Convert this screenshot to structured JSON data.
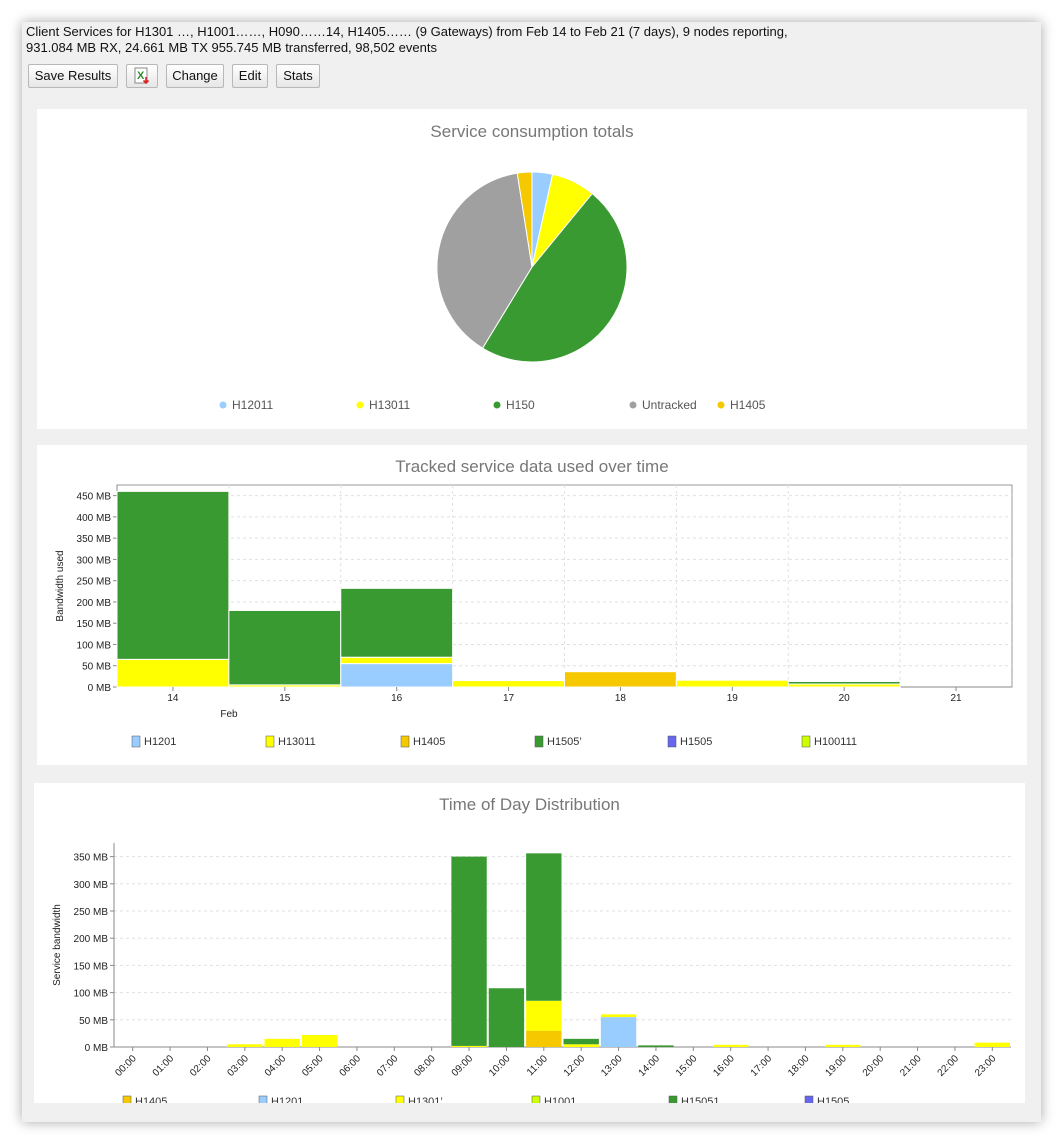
{
  "header": {
    "summary_line1": "Client Services for H1301          …, H1001……, H090……14, H1405…… (9 Gateways) from Feb 14 to Feb 21 (7 days), 9 nodes reporting,",
    "summary_line2": "931.084 MB RX, 24.661 MB TX 955.745 MB transferred, 98,502 events"
  },
  "toolbar": {
    "save_label": "Save Results",
    "excel_icon": "excel-export-icon",
    "change_label": "Change",
    "edit_label": "Edit",
    "stats_label": "Stats"
  },
  "chart_data": [
    {
      "type": "pie",
      "title": "Service consumption totals",
      "slices": [
        {
          "name": "H12011",
          "value": 3.5,
          "color": "#99ccff"
        },
        {
          "name": "H13011",
          "value": 7.5,
          "color": "#ffff00"
        },
        {
          "name": "H150",
          "value": 48,
          "color": "#3a9a32"
        },
        {
          "name": "Untracked",
          "value": 39,
          "color": "#a0a0a0"
        },
        {
          "name": "H1405",
          "value": 2.5,
          "color": "#f5c800"
        }
      ],
      "legend": [
        "H12011",
        "H13011",
        "H150",
        "Untracked",
        "H1405"
      ]
    },
    {
      "type": "bar",
      "stacked": true,
      "title": "Tracked service data used over time",
      "ylabel": "Bandwidth used",
      "xlabel_sub": "Feb",
      "categories": [
        "14",
        "15",
        "16",
        "17",
        "18",
        "19",
        "20",
        "21"
      ],
      "ylim": [
        0,
        475
      ],
      "yticks": [
        0,
        50,
        100,
        150,
        200,
        250,
        300,
        350,
        400,
        450
      ],
      "ytick_labels": [
        "0 MB",
        "50 MB",
        "100 MB",
        "150 MB",
        "200 MB",
        "250 MB",
        "300 MB",
        "350 MB",
        "400 MB",
        "450 MB"
      ],
      "series": [
        {
          "name": "H1201",
          "color": "#99ccff",
          "values": [
            0,
            0,
            55,
            0,
            0,
            0,
            0,
            0
          ]
        },
        {
          "name": "H13011",
          "color": "#ffff00",
          "values": [
            65,
            5,
            15,
            15,
            0,
            16,
            7,
            0
          ]
        },
        {
          "name": "H1405",
          "color": "#f5c800",
          "values": [
            0,
            0,
            0,
            0,
            36,
            0,
            0,
            0
          ]
        },
        {
          "name": "H1505’",
          "color": "#3a9a32",
          "values": [
            395,
            175,
            162,
            0,
            0,
            0,
            6,
            0
          ]
        },
        {
          "name": "H1505",
          "color": "#6666ee",
          "values": [
            0,
            0,
            0,
            0,
            0,
            0,
            0,
            0
          ]
        },
        {
          "name": "H100111",
          "color": "#ccff00",
          "values": [
            0,
            0,
            0,
            0,
            0,
            0,
            0,
            0
          ]
        }
      ],
      "legend": [
        "H1201",
        "H13011",
        "H1405",
        "H1505’",
        "H1505",
        "H100111"
      ]
    },
    {
      "type": "bar",
      "stacked": true,
      "title": "Time of Day Distribution",
      "ylabel": "Service bandwidth",
      "categories": [
        "00:00",
        "01:00",
        "02:00",
        "03:00",
        "04:00",
        "05:00",
        "06:00",
        "07:00",
        "08:00",
        "09:00",
        "10:00",
        "11:00",
        "12:00",
        "13:00",
        "14:00",
        "15:00",
        "16:00",
        "17:00",
        "18:00",
        "19:00",
        "20:00",
        "21:00",
        "22:00",
        "23:00"
      ],
      "ylim": [
        0,
        375
      ],
      "yticks": [
        0,
        50,
        100,
        150,
        200,
        250,
        300,
        350
      ],
      "ytick_labels": [
        "0 MB",
        "50 MB",
        "100 MB",
        "150 MB",
        "200 MB",
        "250 MB",
        "300 MB",
        "350 MB"
      ],
      "series": [
        {
          "name": "H1405",
          "color": "#f5c800",
          "values": [
            0,
            0,
            0,
            0,
            0,
            0,
            0,
            0,
            0,
            0,
            0,
            30,
            0,
            0,
            0,
            0,
            0,
            0,
            0,
            0,
            0,
            0,
            0,
            0
          ]
        },
        {
          "name": "H1201",
          "color": "#99ccff",
          "values": [
            0,
            0,
            0,
            0,
            0,
            0,
            0,
            0,
            0,
            0,
            0,
            0,
            0,
            55,
            0,
            0,
            0,
            0,
            0,
            0,
            0,
            0,
            0,
            0
          ]
        },
        {
          "name": "H1301’",
          "color": "#ffff00",
          "values": [
            0,
            0,
            0,
            5,
            15,
            22,
            0,
            0,
            0,
            2,
            0,
            55,
            5,
            5,
            0,
            0,
            4,
            0,
            0,
            4,
            0,
            0,
            0,
            8
          ]
        },
        {
          "name": "H1001",
          "color": "#ccff00",
          "values": [
            0,
            0,
            0,
            0,
            0,
            0,
            0,
            0,
            0,
            0,
            0,
            0,
            0,
            0,
            0,
            0,
            0,
            0,
            0,
            0,
            0,
            0,
            0,
            0
          ]
        },
        {
          "name": "H15051",
          "color": "#3a9a32",
          "values": [
            0,
            0,
            0,
            0,
            0,
            0,
            0,
            0,
            0,
            348,
            108,
            271,
            10,
            0,
            3,
            0,
            0,
            0,
            0,
            0,
            0,
            0,
            0,
            0
          ]
        },
        {
          "name": "H1505",
          "color": "#6666ee",
          "values": [
            0,
            0,
            0,
            0,
            0,
            0,
            0,
            0,
            0,
            0,
            0,
            0,
            0,
            0,
            0,
            0,
            0,
            0,
            0,
            0,
            0,
            0,
            0,
            0
          ]
        }
      ],
      "legend": [
        "H1405",
        "H1201",
        "H1301’",
        "H1001",
        "H15051",
        "H1505"
      ]
    }
  ]
}
